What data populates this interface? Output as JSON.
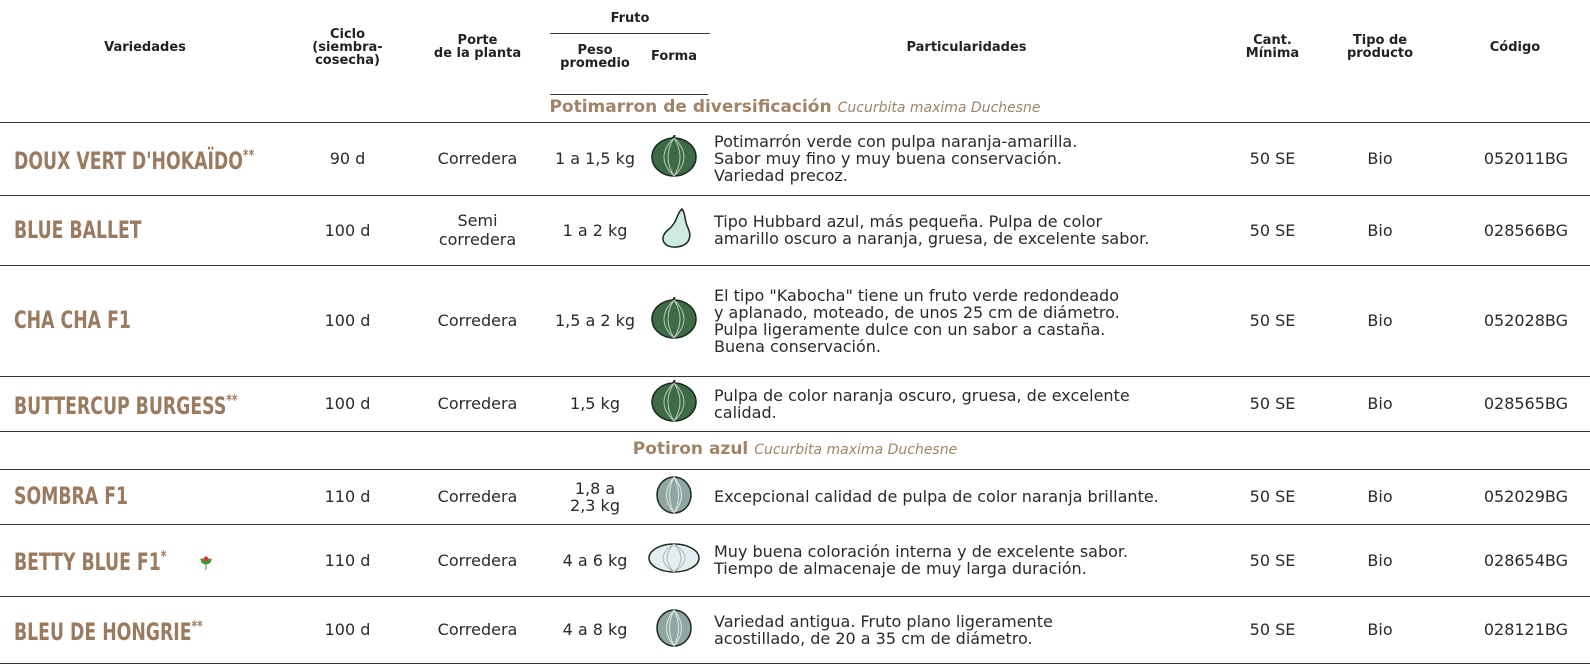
{
  "header": {
    "variety": "Variedades",
    "cycle": "Ciclo\n(siembra-\ncosecha)",
    "habit": "Porte\nde la planta",
    "fruit": "Fruto",
    "weight": "Peso\npromedio",
    "shape": "Forma",
    "features": "Particularidades",
    "quantity": "Cant.\nMínima",
    "product": "Tipo de\nproducto",
    "code": "Código"
  },
  "sections": [
    {
      "title": "Potimarron de diversificación",
      "species": "Cucurbita maxima Duchesne",
      "rows": [
        {
          "name": "DOUX VERT D'HOKAÏDO",
          "mark": "**",
          "cycle": "90 d",
          "habit": "Corredera",
          "weight": "1 a 1,5 kg",
          "description": "Potimarrón verde con pulpa naranja-amarilla.\nSabor muy fino y muy buena conservación.\nVariedad precoz.",
          "quantity": "50 SE",
          "product": "Bio",
          "code": "052011BG"
        },
        {
          "name": "BLUE BALLET",
          "cycle": "100 d",
          "habit": "Semi\ncorredera",
          "weight": "1 a 2 kg",
          "description": "Tipo Hubbard azul, más pequeña. Pulpa de color\namarillo oscuro a naranja, gruesa, de excelente sabor.",
          "quantity": "50 SE",
          "product": "Bio",
          "code": "028566BG"
        },
        {
          "name": "CHA CHA F1",
          "cycle": "100 d",
          "habit": "Corredera",
          "weight": "1,5 a 2 kg",
          "description": "El tipo \"Kabocha\" tiene un fruto verde redondeado\ny aplanado, moteado, de unos 25 cm de diámetro.\nPulpa ligeramente dulce con un sabor a castaña.\nBuena conservación.",
          "quantity": "50 SE",
          "product": "Bio",
          "code": "052028BG"
        },
        {
          "name": "BUTTERCUP BURGESS",
          "mark": "**",
          "cycle": "100 d",
          "habit": "Corredera",
          "weight": "1,5 kg",
          "description": "Pulpa de color naranja oscuro, gruesa, de excelente\ncalidad.",
          "quantity": "50 SE",
          "product": "Bio",
          "code": "028565BG"
        }
      ]
    },
    {
      "title": "Potiron azul",
      "species": "Cucurbita maxima Duchesne",
      "rows": [
        {
          "name": "SOMBRA F1",
          "cycle": "110 d",
          "habit": "Corredera",
          "weight": "1,8 a\n2,3 kg",
          "description": "Excepcional calidad de pulpa de color naranja brillante.",
          "quantity": "50 SE",
          "product": "Bio",
          "code": "052029BG"
        },
        {
          "name": "BETTY BLUE F1",
          "mark": "*",
          "cycle": "110 d",
          "habit": "Corredera",
          "weight": "4 a 6 kg",
          "description": "Muy buena coloración interna y de excelente sabor.\nTiempo de almacenaje de muy larga duración.",
          "quantity": "50 SE",
          "product": "Bio",
          "code": "028654BG"
        },
        {
          "name": "BLEU DE HONGRIE",
          "mark": "**",
          "cycle": "100 d",
          "habit": "Corredera",
          "weight": "4 a 8 kg",
          "description": "Variedad antigua. Fruto plano ligeramente\nacostillado, de 20 a 35 cm de diámetro.",
          "quantity": "50 SE",
          "product": "Bio",
          "code": "028121BG"
        }
      ]
    }
  ]
}
